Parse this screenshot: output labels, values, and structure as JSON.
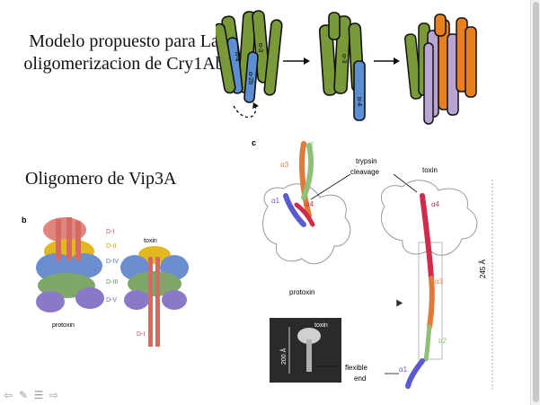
{
  "slide": {
    "title_1": "Modelo propuesto para La oligomerizacion de Cry1Ab",
    "title_2": "Oligomero de Vip3A"
  },
  "cry1ab_model": {
    "helix_labels": [
      "α-3",
      "α-4",
      "α-5",
      "α-2b",
      "α-3",
      "α-4"
    ],
    "colors": {
      "green": "#7a9a3a",
      "blue": "#5b8fd1",
      "orange": "#e8801e",
      "lilac": "#b9a5d4"
    }
  },
  "panel_b": {
    "letter": "b",
    "labels": {
      "d1_top": "D-I",
      "d2": "D-II",
      "d4": "D-IV",
      "d3": "D-III",
      "d5": "D-V",
      "d1_bottom": "D-I",
      "toxin": "toxin",
      "protoxin": "protoxin"
    }
  },
  "panel_c": {
    "letter": "c",
    "labels": {
      "a1": "α1",
      "a2": "α2",
      "a3": "α3",
      "a4": "α4",
      "trypsin": "trypsin",
      "cleavage": "cleavage",
      "protoxin": "protoxin",
      "toxin": "toxin",
      "length": "245 Å",
      "a4_right": "α4",
      "a3_right": "α3",
      "a2_right": "α2",
      "a1_right": "α1"
    },
    "inset": {
      "toxin": "toxin",
      "scale": "200 Å",
      "flexible": "flexible",
      "end": "end"
    }
  },
  "navigation": {
    "back": "⇦",
    "edit": "✎",
    "list": "☰",
    "forward": "⇨"
  }
}
